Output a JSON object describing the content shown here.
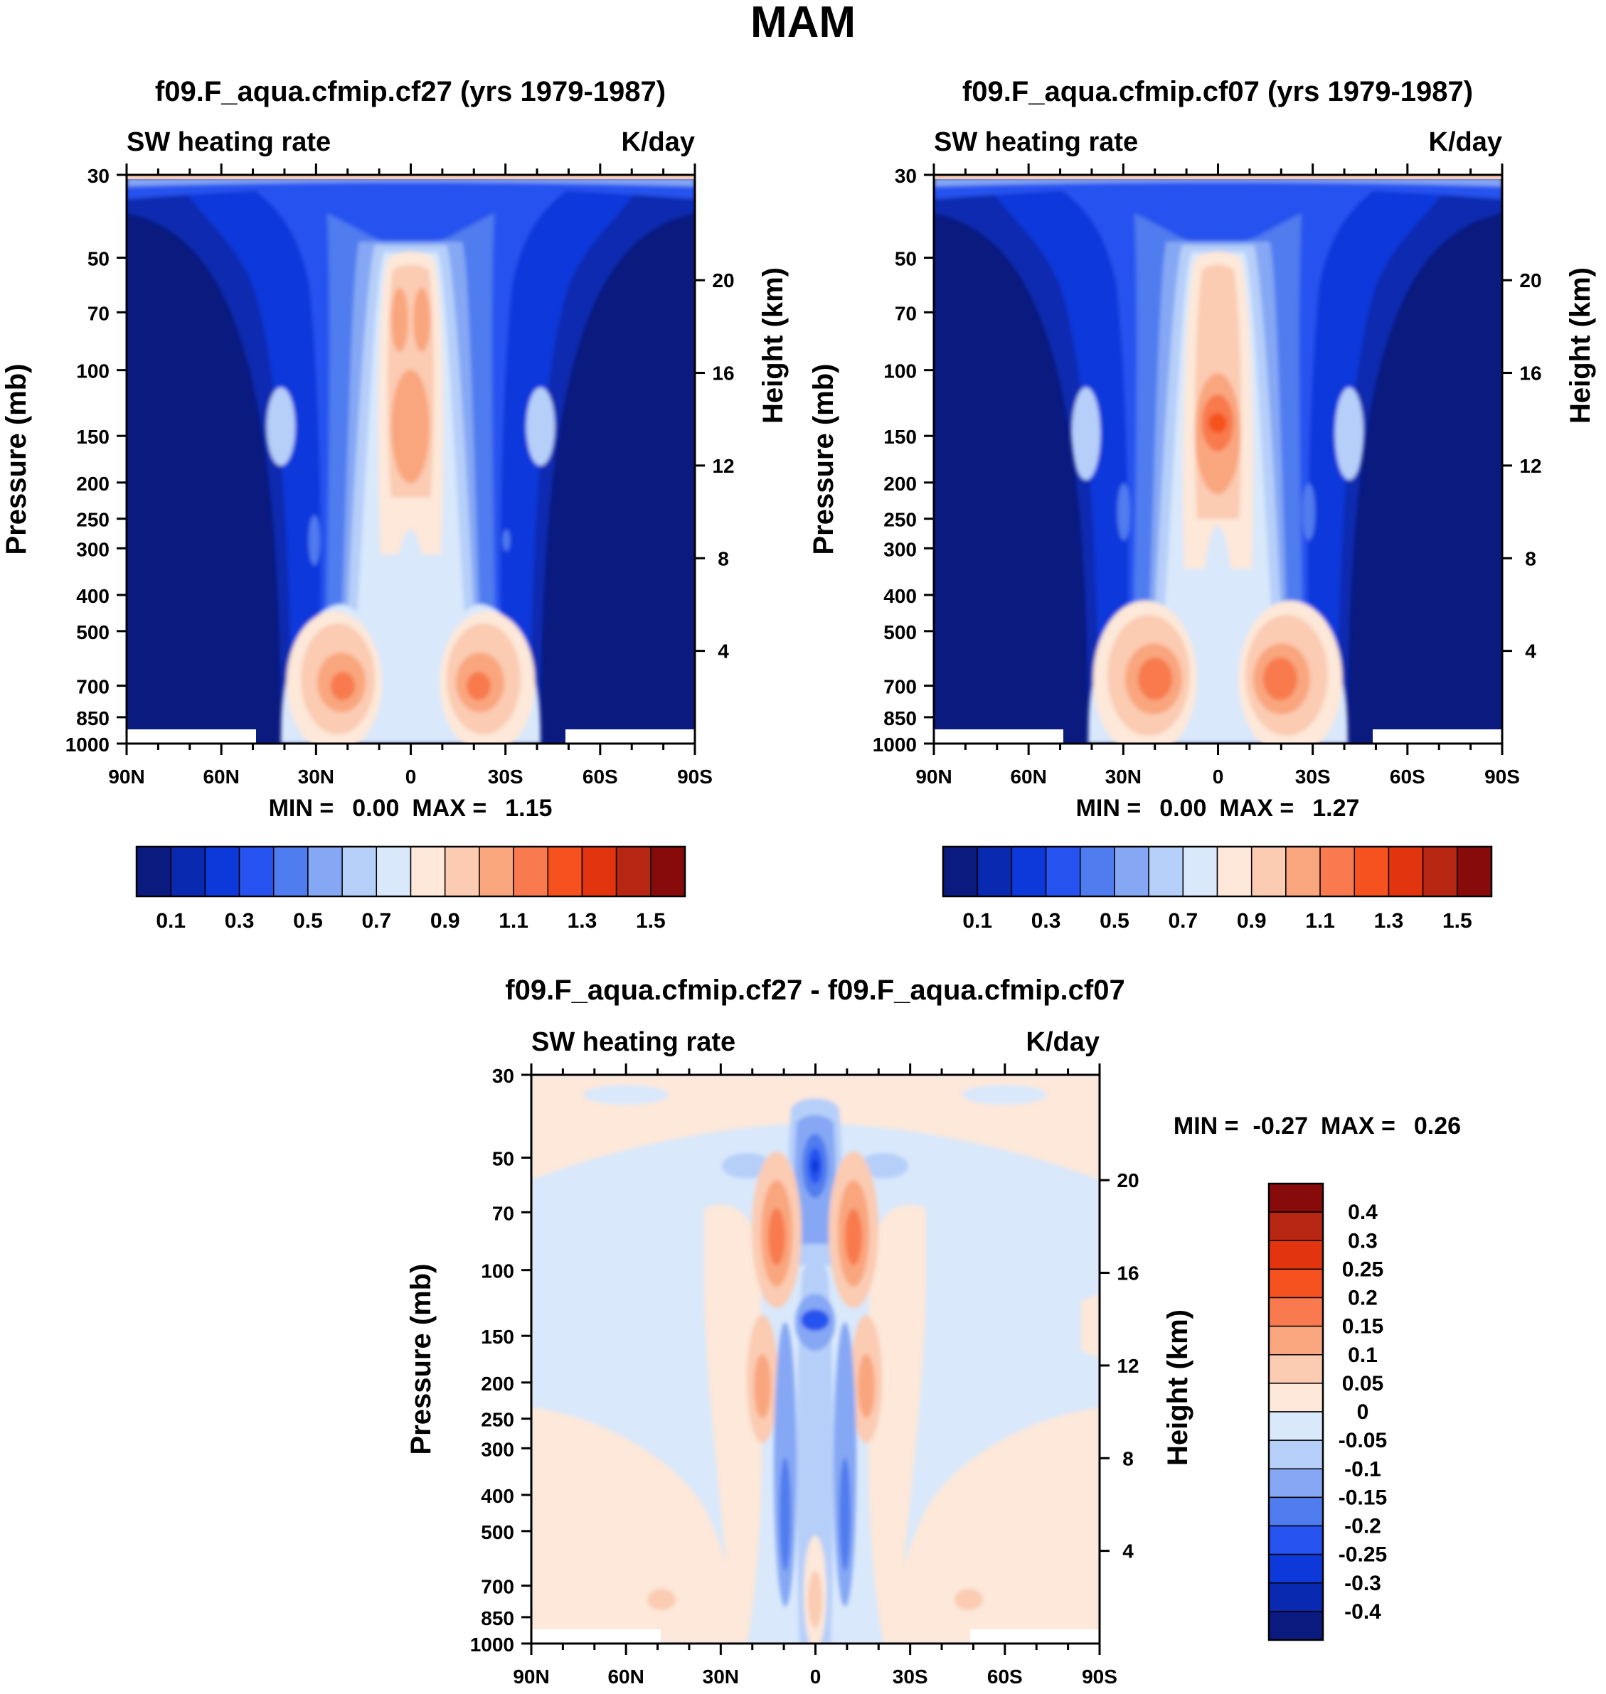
{
  "figure": {
    "season": "MAM"
  },
  "colors": {
    "abs": [
      "#0a1a7f",
      "#0829b0",
      "#0d39db",
      "#2652ef",
      "#4f7cef",
      "#85a7f4",
      "#b6cff9",
      "#d9e8fb",
      "#fde8d9",
      "#fbcbb2",
      "#f9a67e",
      "#f87a4e",
      "#f6521f",
      "#e2340e",
      "#b82614",
      "#870b0b"
    ],
    "diff": [
      "#0a1a7f",
      "#0829b0",
      "#0d39db",
      "#2652ef",
      "#4f7cef",
      "#85a7f4",
      "#b6cff9",
      "#d9e8fb",
      "#fde8d9",
      "#fbcbb2",
      "#f9a67e",
      "#f87a4e",
      "#f6521f",
      "#e2340e",
      "#b82614",
      "#870b0b"
    ]
  },
  "chart_data": [
    {
      "type": "contour",
      "title": "f09.F_aqua.cfmip.cf27 (yrs 1979-1987)",
      "left_string": "SW heating rate",
      "right_string": "K/day",
      "ylabel": "Pressure (mb)",
      "y2label": "Height (km)",
      "pressure_ticks": [
        30,
        50,
        70,
        100,
        150,
        200,
        250,
        300,
        400,
        500,
        700,
        850,
        1000
      ],
      "height_ticks": [
        20,
        16,
        12,
        8,
        4
      ],
      "x_ticks": [
        "90N",
        "60N",
        "30N",
        "0",
        "30S",
        "60S",
        "90S"
      ],
      "stats": {
        "min_label": "MIN =",
        "min": "0.00",
        "max_label": "MAX =",
        "max": "1.15"
      },
      "colorbar_labels": [
        "0.1",
        "0.3",
        "0.5",
        "0.7",
        "0.9",
        "1.1",
        "1.3",
        "1.5"
      ],
      "levels": [
        0.1,
        0.2,
        0.3,
        0.4,
        0.5,
        0.6,
        0.7,
        0.8,
        0.9,
        1.0,
        1.1,
        1.2,
        1.3,
        1.4,
        1.5
      ]
    },
    {
      "type": "contour",
      "title": "f09.F_aqua.cfmip.cf07 (yrs 1979-1987)",
      "left_string": "SW heating rate",
      "right_string": "K/day",
      "ylabel": "Pressure (mb)",
      "y2label": "Height (km)",
      "pressure_ticks": [
        30,
        50,
        70,
        100,
        150,
        200,
        250,
        300,
        400,
        500,
        700,
        850,
        1000
      ],
      "height_ticks": [
        20,
        16,
        12,
        8,
        4
      ],
      "x_ticks": [
        "90N",
        "60N",
        "30N",
        "0",
        "30S",
        "60S",
        "90S"
      ],
      "stats": {
        "min_label": "MIN =",
        "min": "0.00",
        "max_label": "MAX =",
        "max": "1.27"
      },
      "colorbar_labels": [
        "0.1",
        "0.3",
        "0.5",
        "0.7",
        "0.9",
        "1.1",
        "1.3",
        "1.5"
      ],
      "levels": [
        0.1,
        0.2,
        0.3,
        0.4,
        0.5,
        0.6,
        0.7,
        0.8,
        0.9,
        1.0,
        1.1,
        1.2,
        1.3,
        1.4,
        1.5
      ]
    },
    {
      "type": "contour",
      "title": "f09.F_aqua.cfmip.cf27 - f09.F_aqua.cfmip.cf07",
      "left_string": "SW heating rate",
      "right_string": "K/day",
      "ylabel": "Pressure (mb)",
      "y2label": "Height (km)",
      "pressure_ticks": [
        30,
        50,
        70,
        100,
        150,
        200,
        250,
        300,
        400,
        500,
        700,
        850,
        1000
      ],
      "height_ticks": [
        20,
        16,
        12,
        8,
        4
      ],
      "x_ticks": [
        "90N",
        "60N",
        "30N",
        "0",
        "30S",
        "60S",
        "90S"
      ],
      "stats": {
        "min_label": "MIN =",
        "min": "-0.27",
        "max_label": "MAX =",
        "max": "0.26"
      },
      "colorbar_labels": [
        "0.4",
        "0.3",
        "0.25",
        "0.2",
        "0.15",
        "0.1",
        "0.05",
        "0",
        "-0.05",
        "-0.1",
        "-0.15",
        "-0.2",
        "-0.25",
        "-0.3",
        "-0.4"
      ],
      "levels": [
        -0.4,
        -0.3,
        -0.25,
        -0.2,
        -0.15,
        -0.1,
        -0.05,
        0,
        0.05,
        0.1,
        0.15,
        0.2,
        0.25,
        0.3,
        0.4
      ]
    }
  ]
}
